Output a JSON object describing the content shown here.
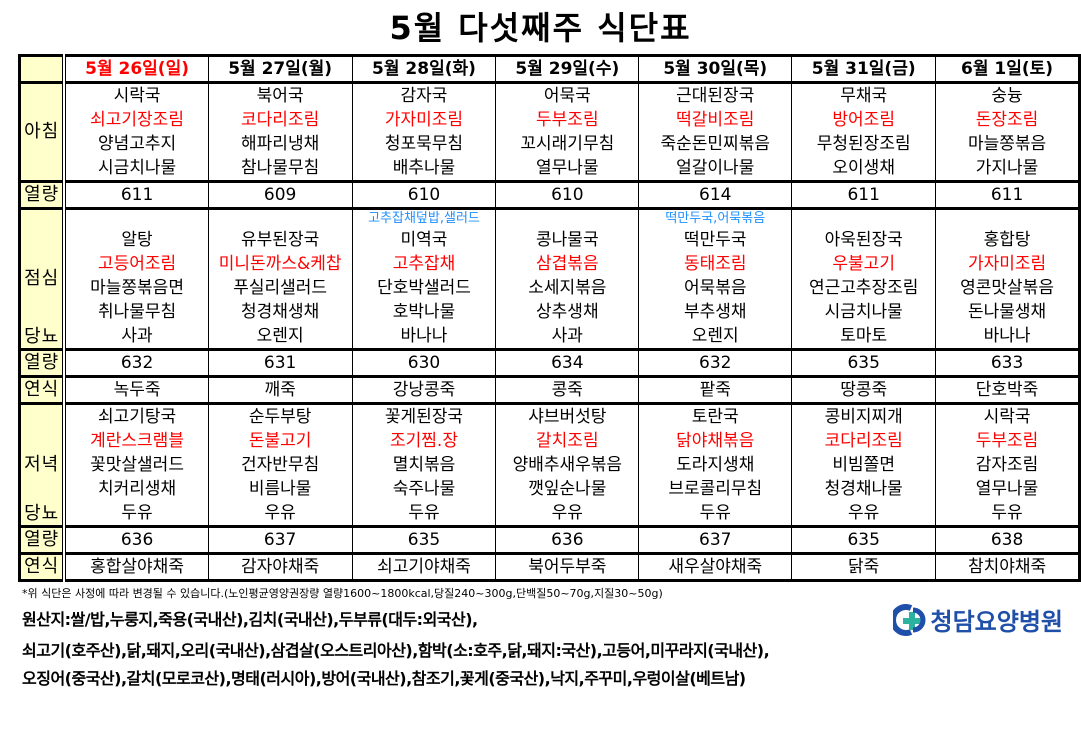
{
  "title": "5월 다섯째주 식단표",
  "labels": {
    "breakfast": "아침",
    "kcal": "열량",
    "lunch": "점심",
    "diabetic": "당뇨",
    "snack": "연식",
    "dinner": "저녁"
  },
  "colors": {
    "sunday": "#ff0000",
    "main_dish": "#ff0000",
    "note": "#1e90ff",
    "label_bg": "#ffffcc",
    "logo": "#1f4fa8"
  },
  "days": [
    {
      "date": "5월 26일(일)",
      "breakfast": [
        "시락국",
        "쇠고기장조림",
        "양념고추지",
        "시금치나물"
      ],
      "kcal_b": "611",
      "lunch_note": "",
      "lunch": [
        "알탕",
        "고등어조림",
        "마늘쫑볶음면",
        "취나물무침",
        "사과"
      ],
      "kcal_l": "632",
      "snack_l": "녹두죽",
      "dinner": [
        "쇠고기탕국",
        "계란스크램블",
        "꽃맛살샐러드",
        "치커리생채",
        "두유"
      ],
      "kcal_d": "636",
      "snack_d": "홍합살야채죽"
    },
    {
      "date": "5월 27일(월)",
      "breakfast": [
        "북어국",
        "코다리조림",
        "해파리냉채",
        "참나물무침"
      ],
      "kcal_b": "609",
      "lunch_note": "",
      "lunch": [
        "유부된장국",
        "미니돈까스&케찹",
        "푸실리샐러드",
        "청경채생채",
        "오렌지"
      ],
      "kcal_l": "631",
      "snack_l": "깨죽",
      "dinner": [
        "순두부탕",
        "돈불고기",
        "건자반무침",
        "비름나물",
        "우유"
      ],
      "kcal_d": "637",
      "snack_d": "감자야채죽"
    },
    {
      "date": "5월 28일(화)",
      "breakfast": [
        "감자국",
        "가자미조림",
        "청포묵무침",
        "배추나물"
      ],
      "kcal_b": "610",
      "lunch_note": "고추잡채덮밥,샐러드",
      "lunch": [
        "미역국",
        "고추잡채",
        "단호박샐러드",
        "호박나물",
        "바나나"
      ],
      "kcal_l": "630",
      "snack_l": "강낭콩죽",
      "dinner": [
        "꽃게된장국",
        "조기찜.장",
        "멸치볶음",
        "숙주나물",
        "두유"
      ],
      "kcal_d": "635",
      "snack_d": "쇠고기야채죽"
    },
    {
      "date": "5월 29일(수)",
      "breakfast": [
        "어묵국",
        "두부조림",
        "꼬시래기무침",
        "열무나물"
      ],
      "kcal_b": "610",
      "lunch_note": "",
      "lunch": [
        "콩나물국",
        "삼겹볶음",
        "소세지볶음",
        "상추생채",
        "사과"
      ],
      "kcal_l": "634",
      "snack_l": "콩죽",
      "dinner": [
        "샤브버섯탕",
        "갈치조림",
        "양배추새우볶음",
        "깻잎순나물",
        "우유"
      ],
      "kcal_d": "636",
      "snack_d": "북어두부죽"
    },
    {
      "date": "5월 30일(목)",
      "breakfast": [
        "근대된장국",
        "떡갈비조림",
        "죽순돈민찌볶음",
        "얼갈이나물"
      ],
      "kcal_b": "614",
      "lunch_note": "떡만두국,어묵볶음",
      "lunch": [
        "떡만두국",
        "동태조림",
        "어묵볶음",
        "부추생채",
        "오렌지"
      ],
      "kcal_l": "632",
      "snack_l": "팥죽",
      "dinner": [
        "토란국",
        "닭야채볶음",
        "도라지생채",
        "브로콜리무침",
        "두유"
      ],
      "kcal_d": "637",
      "snack_d": "새우살야채죽"
    },
    {
      "date": "5월 31일(금)",
      "breakfast": [
        "무채국",
        "방어조림",
        "무청된장조림",
        "오이생채"
      ],
      "kcal_b": "611",
      "lunch_note": "",
      "lunch": [
        "아욱된장국",
        "우불고기",
        "연근고추장조림",
        "시금치나물",
        "토마토"
      ],
      "kcal_l": "635",
      "snack_l": "땅콩죽",
      "dinner": [
        "콩비지찌개",
        "코다리조림",
        "비빔쫄면",
        "청경채나물",
        "우유"
      ],
      "kcal_d": "635",
      "snack_d": "닭죽"
    },
    {
      "date": "6월 1일(토)",
      "breakfast": [
        "숭늉",
        "돈장조림",
        "마늘쫑볶음",
        "가지나물"
      ],
      "kcal_b": "611",
      "lunch_note": "",
      "lunch": [
        "홍합탕",
        "가자미조림",
        "영콘맛살볶음",
        "돈나물생채",
        "바나나"
      ],
      "kcal_l": "633",
      "snack_l": "단호박죽",
      "dinner": [
        "시락국",
        "두부조림",
        "감자조림",
        "열무나물",
        "두유"
      ],
      "kcal_d": "638",
      "snack_d": "참치야채죽"
    }
  ],
  "footer": {
    "note": "*위 식단은 사정에 따라 변경될 수 있습니다.(노인평균영양권장량 열량1600~1800kcal,당질240~300g,단백질50~70g,지질30~50g)",
    "origin": [
      "원산지:쌀/밥,누룽지,죽용(국내산),김치(국내산),두부류(대두:외국산),",
      "쇠고기(호주산),닭,돼지,오리(국내산),삼겹살(오스트리아산),함박(소:호주,닭,돼지:국산),고등어,미꾸라지(국내산),",
      "오징어(중국산),갈치(모로코산),명태(러시아),방어(국내산),참조기,꽃게(중국산),낙지,주꾸미,우렁이살(베트남)"
    ],
    "logo_text": "청담요양병원"
  }
}
